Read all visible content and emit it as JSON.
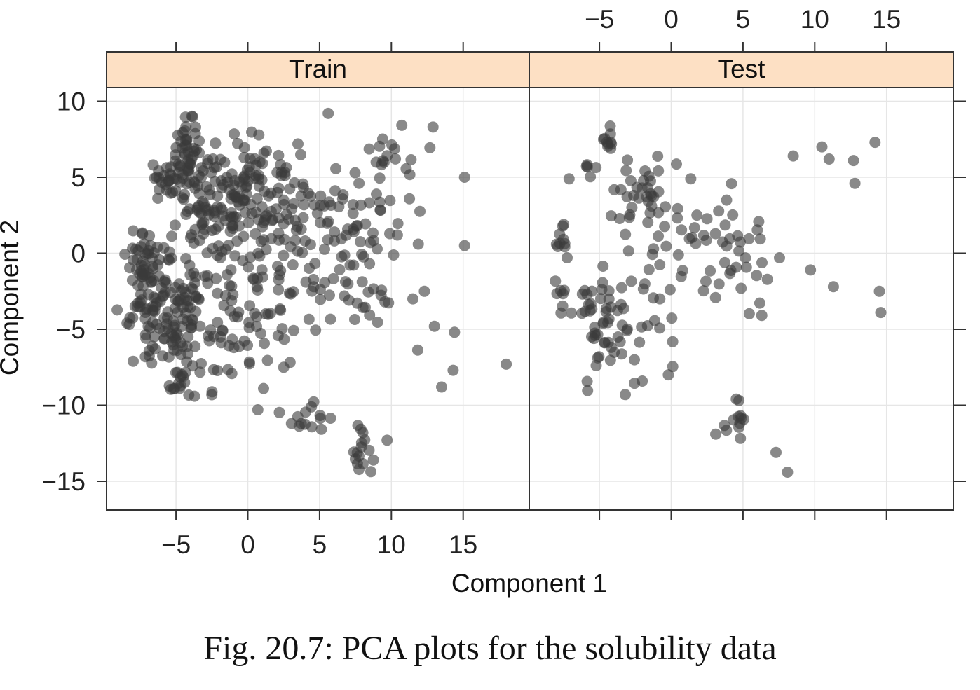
{
  "caption": "Fig. 20.7: PCA plots for the solubility data",
  "chart_data": {
    "type": "scatter",
    "xlabel": "Component 1",
    "ylabel": "Component 2",
    "xlim": [
      -10,
      19.5
    ],
    "ylim": [
      -17.5,
      10.5
    ],
    "x_ticks": [
      -5,
      0,
      5,
      10,
      15
    ],
    "y_ticks": [
      10,
      5,
      0,
      -5,
      -10,
      -15
    ],
    "x_tick_labels": [
      "−5",
      "0",
      "5",
      "10",
      "15"
    ],
    "y_tick_labels": [
      "10",
      "5",
      "0",
      "−5",
      "−10",
      "−15"
    ],
    "grid": true,
    "point_color": "#3a3a3a",
    "strip_color": "#fde0c4",
    "panels": [
      {
        "name": "Train",
        "clusters": [
          {
            "cx": -4.2,
            "cy": 6.5,
            "sx": 0.4,
            "sy": 1.4,
            "n": 40
          },
          {
            "cx": -5.5,
            "cy": 5.5,
            "sx": 0.6,
            "sy": 0.8,
            "n": 25
          },
          {
            "cx": -2.5,
            "cy": 4.5,
            "sx": 1.5,
            "sy": 1.3,
            "n": 60
          },
          {
            "cx": 0.5,
            "cy": 5.0,
            "sx": 1.5,
            "sy": 1.0,
            "n": 40
          },
          {
            "cx": -1.0,
            "cy": 1.5,
            "sx": 2.5,
            "sy": 1.5,
            "n": 80
          },
          {
            "cx": 3.5,
            "cy": 2.5,
            "sx": 2.2,
            "sy": 2.0,
            "n": 60
          },
          {
            "cx": 8.5,
            "cy": 2.0,
            "sx": 1.8,
            "sy": 2.0,
            "n": 40
          },
          {
            "cx": -7.0,
            "cy": -0.5,
            "sx": 0.6,
            "sy": 1.3,
            "n": 40
          },
          {
            "cx": -5.0,
            "cy": -2.5,
            "sx": 1.5,
            "sy": 1.5,
            "n": 50
          },
          {
            "cx": -5.0,
            "cy": -5.5,
            "sx": 1.2,
            "sy": 1.5,
            "n": 55
          },
          {
            "cx": -4.0,
            "cy": -8.5,
            "sx": 1.2,
            "sy": 0.6,
            "n": 20
          },
          {
            "cx": -1.0,
            "cy": -5.0,
            "sx": 1.8,
            "sy": 1.5,
            "n": 40
          },
          {
            "cx": 2.5,
            "cy": -3.0,
            "sx": 2.2,
            "sy": 2.0,
            "n": 40
          },
          {
            "cx": 8.0,
            "cy": -3.5,
            "sx": 1.5,
            "sy": 1.5,
            "n": 20
          },
          {
            "cx": 10.5,
            "cy": 6.5,
            "sx": 1.5,
            "sy": 1.0,
            "n": 15
          },
          {
            "cx": 4.5,
            "cy": -10.8,
            "sx": 1.0,
            "sy": 0.6,
            "n": 14
          },
          {
            "cx": 7.8,
            "cy": -13.0,
            "sx": 0.5,
            "sy": 1.0,
            "n": 16
          },
          {
            "cx": -7.0,
            "cy": -4.0,
            "sx": 0.8,
            "sy": 1.0,
            "n": 25
          }
        ],
        "outliers": [
          [
            5.6,
            9.2
          ],
          [
            12.9,
            8.3
          ],
          [
            15.1,
            5.0
          ],
          [
            15.1,
            0.5
          ],
          [
            18.0,
            -7.3
          ],
          [
            13.5,
            -8.8
          ],
          [
            14.3,
            -7.7
          ],
          [
            9.7,
            -12.3
          ],
          [
            0.7,
            -10.3
          ],
          [
            2.5,
            -7.5
          ],
          [
            1.1,
            -8.9
          ],
          [
            14.4,
            -5.2
          ],
          [
            13.0,
            -4.8
          ],
          [
            12.3,
            -2.5
          ],
          [
            11.5,
            -3.0
          ]
        ]
      },
      {
        "name": "Test",
        "clusters": [
          {
            "cx": -4.5,
            "cy": 7.5,
            "sx": 0.25,
            "sy": 0.5,
            "n": 10
          },
          {
            "cx": -2.5,
            "cy": 4.0,
            "sx": 1.2,
            "sy": 1.0,
            "n": 30
          },
          {
            "cx": -5.5,
            "cy": 5.8,
            "sx": 0.5,
            "sy": 0.5,
            "n": 6
          },
          {
            "cx": -1.0,
            "cy": 1.0,
            "sx": 1.5,
            "sy": 1.2,
            "n": 20
          },
          {
            "cx": 3.0,
            "cy": 2.5,
            "sx": 2.0,
            "sy": 1.5,
            "n": 20
          },
          {
            "cx": -7.5,
            "cy": 0.5,
            "sx": 0.3,
            "sy": 0.8,
            "n": 10
          },
          {
            "cx": -5.0,
            "cy": -3.5,
            "sx": 0.9,
            "sy": 1.2,
            "n": 30
          },
          {
            "cx": -4.5,
            "cy": -6.5,
            "sx": 1.2,
            "sy": 1.2,
            "n": 20
          },
          {
            "cx": -1.0,
            "cy": -4.0,
            "sx": 1.5,
            "sy": 1.5,
            "n": 20
          },
          {
            "cx": 5.0,
            "cy": -1.5,
            "sx": 1.8,
            "sy": 1.5,
            "n": 20
          },
          {
            "cx": 4.5,
            "cy": -11.0,
            "sx": 0.6,
            "sy": 0.7,
            "n": 12
          },
          {
            "cx": -7.5,
            "cy": -3.5,
            "sx": 0.4,
            "sy": 1.0,
            "n": 8
          }
        ],
        "outliers": [
          [
            10.5,
            7.0
          ],
          [
            11.0,
            6.2
          ],
          [
            12.7,
            6.1
          ],
          [
            14.2,
            7.3
          ],
          [
            12.8,
            4.6
          ],
          [
            14.5,
            -2.5
          ],
          [
            14.6,
            -3.9
          ],
          [
            11.3,
            -2.2
          ],
          [
            8.1,
            -14.4
          ],
          [
            7.3,
            -13.1
          ],
          [
            8.5,
            6.4
          ],
          [
            9.7,
            -1.1
          ],
          [
            -3.2,
            -9.3
          ],
          [
            -0.2,
            -8.0
          ],
          [
            3.1,
            -11.9
          ]
        ]
      }
    ]
  }
}
